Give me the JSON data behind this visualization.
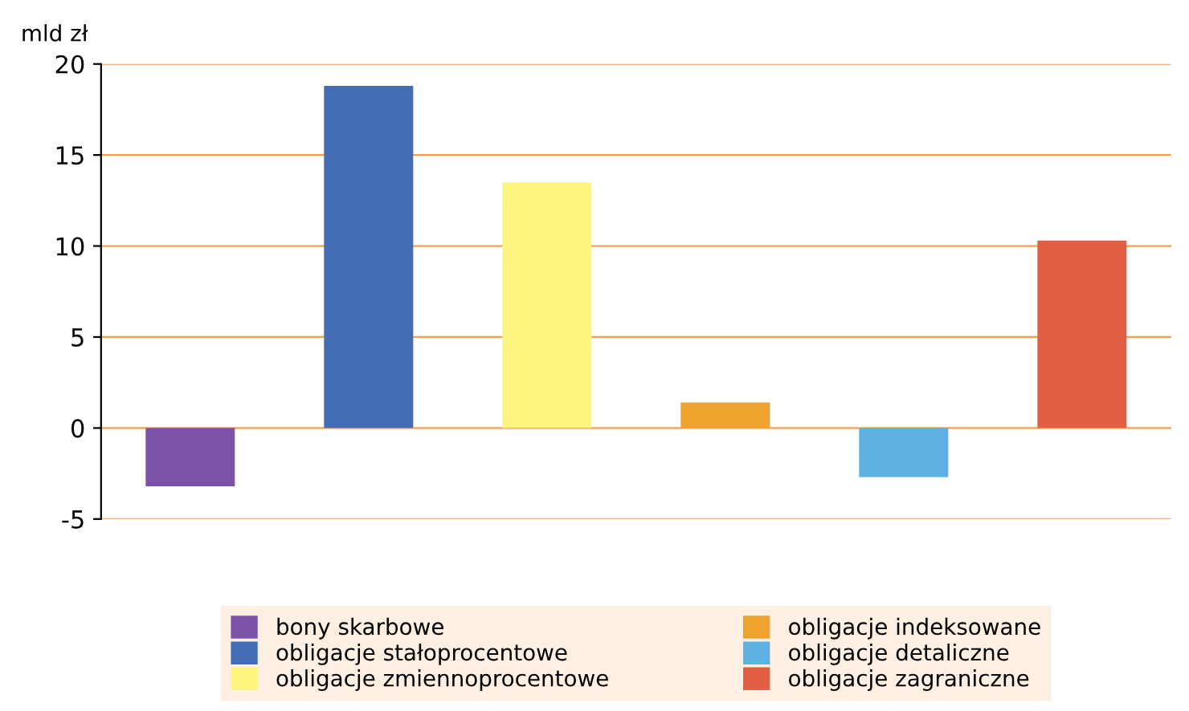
{
  "chart_data": {
    "type": "bar",
    "ylabel": "mld zł",
    "categories": [
      null,
      null,
      null,
      null,
      null,
      null
    ],
    "series": [
      {
        "name": "bony skarbowe",
        "color": "#7b52a8",
        "values": [
          -3.2,
          null,
          null,
          null,
          null,
          null
        ]
      },
      {
        "name": "obligacje stałoprocentowe",
        "color": "#456db4",
        "values": [
          null,
          18.8,
          null,
          null,
          null,
          null
        ]
      },
      {
        "name": "obligacje zmiennoprocentowe",
        "color": "#fdf580",
        "values": [
          null,
          null,
          13.5,
          null,
          null,
          null
        ]
      },
      {
        "name": "obligacje indeksowane",
        "color": "#f0a22e",
        "values": [
          null,
          null,
          null,
          1.4,
          null,
          null
        ]
      },
      {
        "name": "obligacje detaliczne",
        "color": "#5eb1e3",
        "values": [
          null,
          null,
          null,
          null,
          -2.7,
          null
        ]
      },
      {
        "name": "obligacje zagraniczne",
        "color": "#e25f45",
        "values": [
          null,
          null,
          null,
          null,
          null,
          10.3
        ]
      }
    ],
    "stacked": true,
    "ylim": [
      -5,
      20
    ],
    "yticks": [
      -5,
      0,
      5,
      10,
      15,
      20
    ],
    "grid": "y",
    "legend": "bottom"
  }
}
